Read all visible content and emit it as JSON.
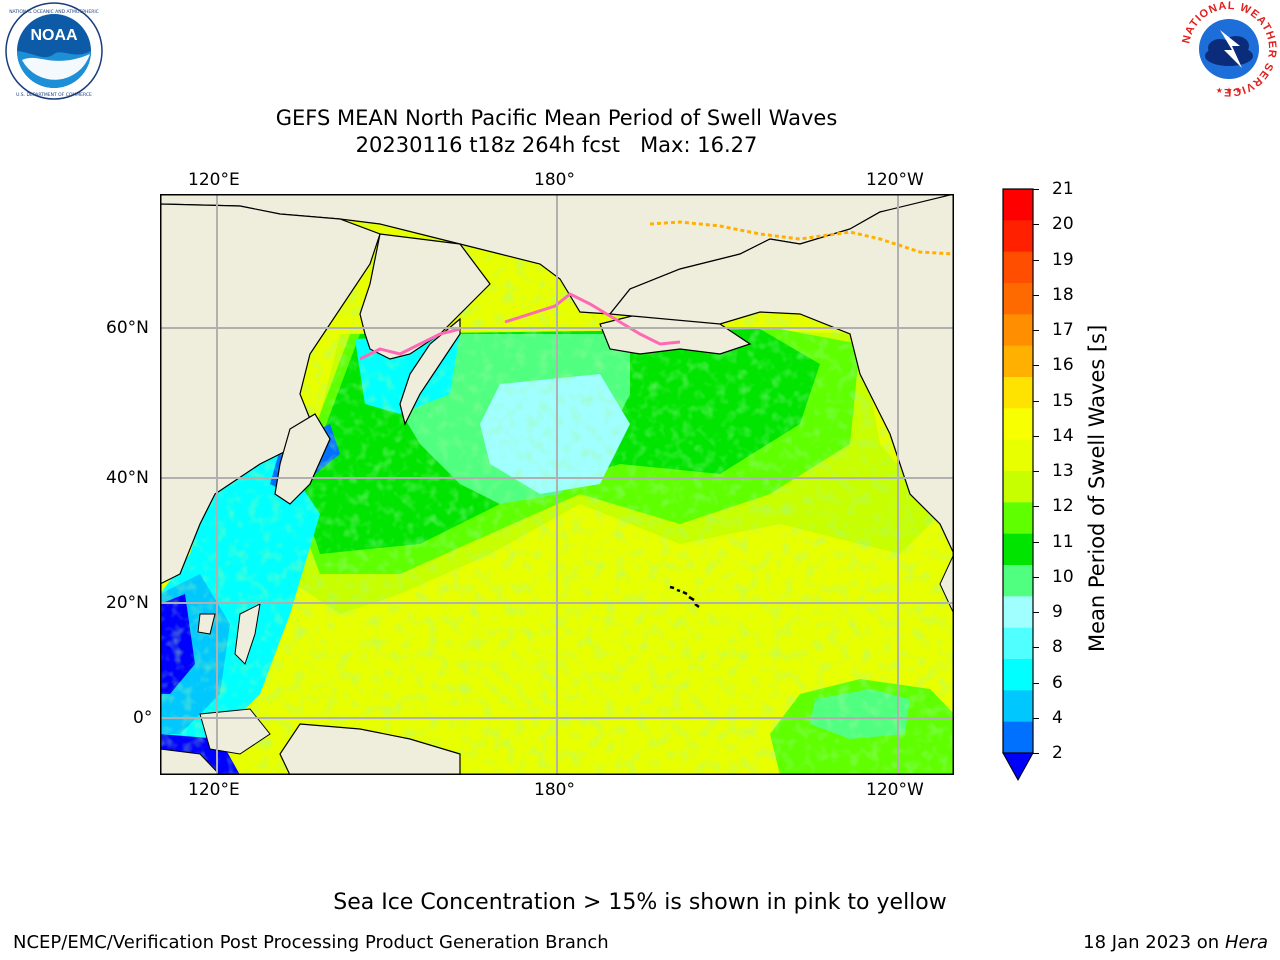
{
  "title": {
    "line1": "GEFS MEAN North Pacific Mean Period of Swell Waves",
    "line2": "20230116 t18z 264h fcst   Max: 16.27"
  },
  "logos": {
    "noaa": {
      "text": "NOAA",
      "ring_text": "NATIONAL OCEANIC AND ATMOSPHERIC ADMINISTRATION · U.S. DEPARTMENT OF COMMERCE"
    },
    "nws": {
      "ring_text": "NATIONAL WEATHER SERVICE"
    }
  },
  "map": {
    "lon_labels_top": [
      "120°E",
      "180°",
      "120°W"
    ],
    "lon_labels_bottom": [
      "120°E",
      "180°",
      "120°W"
    ],
    "lat_labels": [
      "60°N",
      "40°N",
      "20°N",
      "0°"
    ],
    "land_color": "#efeedd",
    "grid_color": "#b0b0b0"
  },
  "colorbar": {
    "label": "Mean Period of Swell Waves [s]",
    "ticks": [
      "21",
      "20",
      "19",
      "18",
      "17",
      "16",
      "15",
      "14",
      "13",
      "12",
      "11",
      "10",
      "9",
      "8",
      "6",
      "4",
      "2"
    ],
    "colors_top_to_bottom": [
      "#ff0000",
      "#ff2000",
      "#ff4e00",
      "#ff6a00",
      "#ff8e00",
      "#ffb000",
      "#ffe300",
      "#f8ff00",
      "#e8ff00",
      "#c8ff00",
      "#60ff00",
      "#00e400",
      "#50ff80",
      "#a0ffff",
      "#50ffff",
      "#00ffff",
      "#00c8ff",
      "#0070ff"
    ],
    "extend_color": "#0000ff"
  },
  "note": "Sea Ice Concentration > 15% is shown in pink to yellow",
  "footer": {
    "left": "NCEP/EMC/Verification Post Processing Product Generation Branch",
    "date": "18 Jan 2023 on ",
    "machine": "Hera"
  }
}
